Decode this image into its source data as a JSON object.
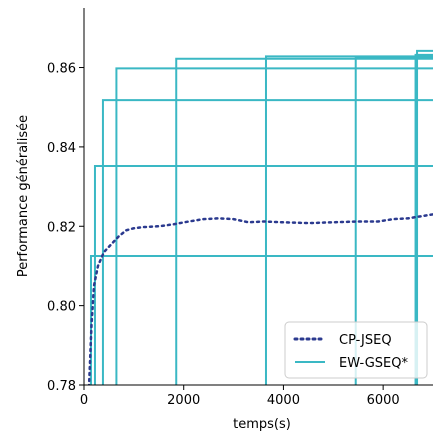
{
  "chart_data": {
    "type": "line",
    "title": "",
    "xlabel": "temps(s)",
    "ylabel": "Performance généralisée",
    "xlim": [
      0,
      7000
    ],
    "ylim": [
      0.78,
      0.875
    ],
    "xticks": [
      0,
      2000,
      4000,
      6000
    ],
    "xtick_labels": [
      "0",
      "2000",
      "4000",
      "6000"
    ],
    "yticks": [
      0.78,
      0.8,
      0.82,
      0.84,
      0.86
    ],
    "ytick_labels": [
      "0.78",
      "0.80",
      "0.82",
      "0.84",
      "0.86"
    ],
    "grid": false,
    "legend_position": "lower right",
    "series": [
      {
        "name": "CP-JSEQ",
        "style": "dotted",
        "color": "#2b3a8f",
        "x": [
          100,
          150,
          200,
          280,
          400,
          550,
          700,
          850,
          1000,
          1200,
          1500,
          1800,
          2100,
          2400,
          2700,
          3000,
          3300,
          3600,
          4000,
          4500,
          5000,
          5500,
          5900,
          6200,
          6500,
          7000
        ],
        "y": [
          0.7795,
          0.795,
          0.805,
          0.81,
          0.8135,
          0.8155,
          0.8175,
          0.819,
          0.8195,
          0.8198,
          0.82,
          0.8205,
          0.8212,
          0.8218,
          0.822,
          0.8218,
          0.821,
          0.8212,
          0.821,
          0.8208,
          0.821,
          0.8212,
          0.8212,
          0.8218,
          0.822,
          0.823
        ]
      },
      {
        "name": "EW-GSEQ*",
        "style": "solid",
        "color": "#3ab8c4",
        "steps": [
          {
            "jump_x": 140,
            "level": 0.8125
          },
          {
            "jump_x": 220,
            "level": 0.8352
          },
          {
            "jump_x": 380,
            "level": 0.8518
          },
          {
            "jump_x": 650,
            "level": 0.8598
          },
          {
            "jump_x": 1850,
            "level": 0.8622
          },
          {
            "jump_x": 3650,
            "level": 0.8628
          },
          {
            "jump_x": 5450,
            "level": 0.8625
          },
          {
            "jump_x": 6650,
            "level": 0.8632
          },
          {
            "jump_x": 6680,
            "level": 0.8642
          }
        ]
      }
    ]
  }
}
